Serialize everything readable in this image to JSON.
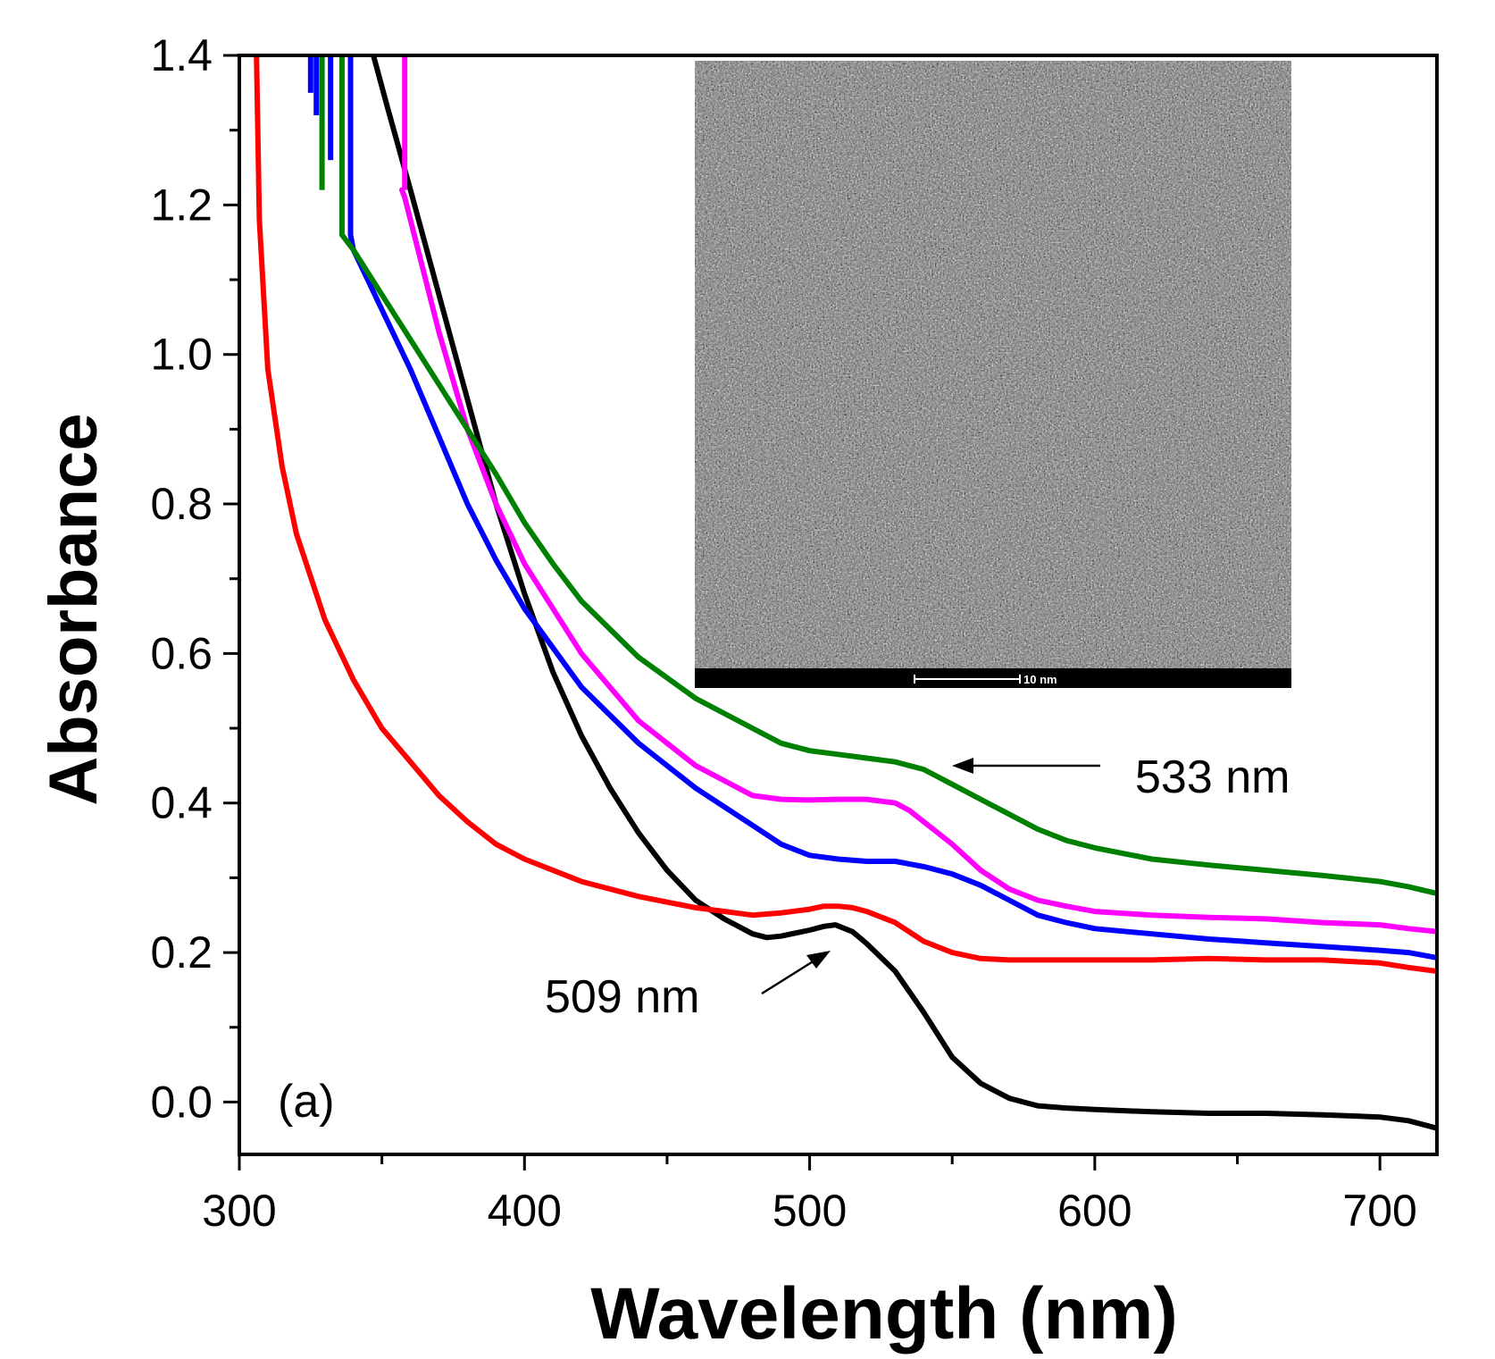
{
  "chart_data": {
    "type": "line",
    "xlabel": "Wavelength (nm)",
    "ylabel": "Absorbance",
    "xlim": [
      300,
      720
    ],
    "ylim": [
      -0.07,
      1.4
    ],
    "xticks": [
      300,
      400,
      500,
      600,
      700
    ],
    "xtick_labels": [
      "300",
      "400",
      "500",
      "600",
      "700"
    ],
    "yticks": [
      0.0,
      0.2,
      0.4,
      0.6,
      0.8,
      1.0,
      1.2,
      1.4
    ],
    "ytick_labels": [
      "0.0",
      "0.2",
      "0.4",
      "0.6",
      "0.8",
      "1.0",
      "1.2",
      "1.4"
    ],
    "grid": false,
    "legend": "none",
    "panel_label": "(a)",
    "annotations": [
      {
        "text": "509 nm",
        "x": 509
      },
      {
        "text": "533 nm",
        "x": 533
      }
    ],
    "inset": {
      "type": "TEM micrograph",
      "scale_bar_label": "10 nm"
    },
    "series": [
      {
        "color": "#000000",
        "x": [
          347,
          352,
          360,
          370,
          380,
          390,
          400,
          410,
          420,
          430,
          440,
          450,
          460,
          470,
          480,
          485,
          490,
          500,
          505,
          509,
          515,
          520,
          530,
          540,
          550,
          560,
          570,
          580,
          590,
          600,
          620,
          640,
          660,
          680,
          700,
          710,
          720
        ],
        "y": [
          1.4,
          1.33,
          1.22,
          1.08,
          0.94,
          0.8,
          0.68,
          0.575,
          0.49,
          0.42,
          0.36,
          0.31,
          0.27,
          0.245,
          0.225,
          0.22,
          0.222,
          0.23,
          0.235,
          0.237,
          0.228,
          0.212,
          0.175,
          0.12,
          0.06,
          0.025,
          0.005,
          -0.005,
          -0.008,
          -0.01,
          -0.013,
          -0.015,
          -0.015,
          -0.017,
          -0.02,
          -0.025,
          -0.035
        ]
      },
      {
        "color": "#ff0000",
        "x": [
          306,
          307,
          310,
          315,
          320,
          330,
          340,
          350,
          360,
          370,
          380,
          390,
          400,
          420,
          440,
          460,
          480,
          490,
          500,
          505,
          510,
          515,
          520,
          530,
          540,
          550,
          560,
          570,
          580,
          600,
          620,
          640,
          660,
          680,
          700,
          710,
          720
        ],
        "y": [
          1.4,
          1.18,
          0.98,
          0.85,
          0.76,
          0.645,
          0.565,
          0.5,
          0.455,
          0.41,
          0.375,
          0.345,
          0.325,
          0.295,
          0.275,
          0.26,
          0.25,
          0.253,
          0.258,
          0.262,
          0.262,
          0.26,
          0.255,
          0.24,
          0.215,
          0.2,
          0.192,
          0.19,
          0.19,
          0.19,
          0.19,
          0.192,
          0.19,
          0.19,
          0.186,
          0.18,
          0.175
        ]
      },
      {
        "color": "#0000ff",
        "x": [
          339,
          340,
          345,
          350,
          360,
          370,
          380,
          390,
          400,
          420,
          440,
          460,
          480,
          490,
          500,
          510,
          520,
          530,
          540,
          550,
          560,
          570,
          580,
          590,
          600,
          620,
          640,
          660,
          680,
          700,
          710,
          720
        ],
        "y": [
          1.16,
          1.14,
          1.1,
          1.06,
          0.98,
          0.89,
          0.8,
          0.725,
          0.66,
          0.555,
          0.48,
          0.42,
          0.37,
          0.345,
          0.33,
          0.325,
          0.322,
          0.322,
          0.315,
          0.305,
          0.29,
          0.27,
          0.25,
          0.24,
          0.232,
          0.225,
          0.218,
          0.213,
          0.208,
          0.203,
          0.2,
          0.193
        ]
      },
      {
        "color": "#ff00ff",
        "x": [
          357,
          358,
          360,
          370,
          380,
          390,
          400,
          410,
          420,
          440,
          460,
          480,
          490,
          500,
          510,
          520,
          530,
          535,
          540,
          550,
          560,
          570,
          580,
          590,
          600,
          620,
          640,
          660,
          680,
          700,
          710,
          720
        ],
        "y": [
          1.22,
          1.21,
          1.18,
          1.03,
          0.9,
          0.8,
          0.72,
          0.66,
          0.6,
          0.51,
          0.45,
          0.41,
          0.405,
          0.404,
          0.405,
          0.405,
          0.4,
          0.39,
          0.375,
          0.345,
          0.31,
          0.285,
          0.27,
          0.262,
          0.255,
          0.25,
          0.247,
          0.245,
          0.24,
          0.237,
          0.232,
          0.228
        ]
      },
      {
        "color": "#008000",
        "x": [
          336,
          340,
          350,
          360,
          370,
          380,
          390,
          400,
          410,
          420,
          440,
          460,
          480,
          490,
          500,
          510,
          520,
          530,
          540,
          550,
          560,
          570,
          580,
          590,
          600,
          620,
          640,
          660,
          680,
          700,
          710,
          720
        ],
        "y": [
          1.16,
          1.14,
          1.08,
          1.02,
          0.96,
          0.9,
          0.84,
          0.775,
          0.72,
          0.67,
          0.595,
          0.54,
          0.5,
          0.48,
          0.47,
          0.465,
          0.46,
          0.455,
          0.445,
          0.425,
          0.405,
          0.385,
          0.365,
          0.35,
          0.34,
          0.325,
          0.317,
          0.31,
          0.303,
          0.295,
          0.288,
          0.279
        ]
      }
    ],
    "spikes": [
      {
        "color": "#0000ff",
        "x": 325,
        "y_min": 1.35
      },
      {
        "color": "#0000ff",
        "x": 327,
        "y_min": 1.32
      },
      {
        "color": "#008000",
        "x": 329,
        "y_min": 1.22
      },
      {
        "color": "#0000ff",
        "x": 332,
        "y_min": 1.26
      },
      {
        "color": "#008000",
        "x": 336,
        "y_min": 1.16
      },
      {
        "color": "#0000ff",
        "x": 339,
        "y_min": 1.16
      },
      {
        "color": "#ff00ff",
        "x": 358,
        "y_min": 1.22
      }
    ]
  }
}
